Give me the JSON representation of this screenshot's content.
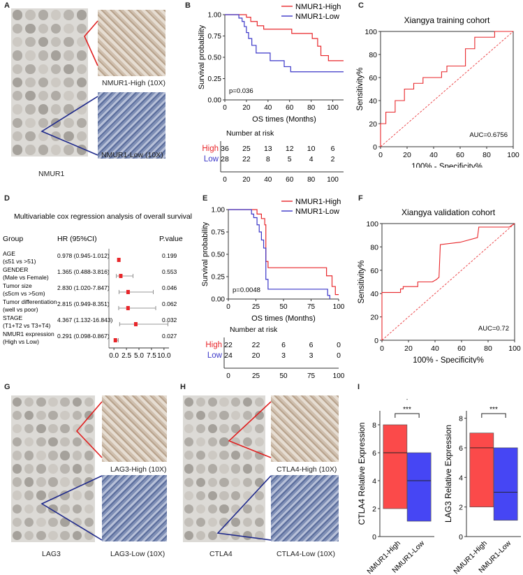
{
  "panels": {
    "A": {
      "letter": "A",
      "main_label": "NMUR1",
      "high_label": "NMUR1-High (10X)",
      "low_label": "NMUR1-Low (10X)"
    },
    "G": {
      "letter": "G",
      "main_label": "LAG3",
      "high_label": "LAG3-High (10X)",
      "low_label": "LAG3-Low (10X)"
    },
    "H": {
      "letter": "H",
      "main_label": "CTLA4",
      "high_label": "CTLA4-High (10X)",
      "low_label": "CTLA4-Low (10X)"
    }
  },
  "colors": {
    "high": "#e8262a",
    "low": "#3a36c8",
    "diag": "#e8262a",
    "high_fill": "#fb4a4a",
    "low_fill": "#4646f4",
    "tri_red": "#e02020",
    "tri_blue": "#1f2a8c"
  },
  "chart_data": [
    {
      "id": "B",
      "letter": "B",
      "type": "line",
      "ylabel": "Survival probability",
      "xlabel": "OS times (Months)",
      "xlim": [
        0,
        110
      ],
      "ylim": [
        0,
        1
      ],
      "xticks": [
        0,
        20,
        40,
        60,
        80,
        100
      ],
      "yticks": [
        0,
        0.25,
        0.5,
        0.75,
        1.0
      ],
      "ytick_labels": [
        "0.00",
        "0.25",
        "0.50",
        "0.75",
        "1.00"
      ],
      "pvalue": "p=0.036",
      "series": [
        {
          "name": "NMUR1-High",
          "steps": [
            [
              0,
              1
            ],
            [
              18,
              1
            ],
            [
              20,
              0.97
            ],
            [
              24,
              0.92
            ],
            [
              30,
              0.87
            ],
            [
              36,
              0.83
            ],
            [
              62,
              0.78
            ],
            [
              81,
              0.72
            ],
            [
              86,
              0.63
            ],
            [
              89,
              0.52
            ],
            [
              96,
              0.46
            ],
            [
              110,
              0.46
            ]
          ]
        },
        {
          "name": "NMUR1-Low",
          "steps": [
            [
              0,
              1
            ],
            [
              11,
              1
            ],
            [
              13,
              0.96
            ],
            [
              16,
              0.92
            ],
            [
              18,
              0.86
            ],
            [
              20,
              0.79
            ],
            [
              22,
              0.72
            ],
            [
              25,
              0.64
            ],
            [
              29,
              0.55
            ],
            [
              42,
              0.46
            ],
            [
              55,
              0.39
            ],
            [
              61,
              0.33
            ],
            [
              110,
              0.33
            ]
          ]
        }
      ],
      "risk": {
        "title": "Number at risk",
        "rows": [
          {
            "label": "High",
            "values": [
              "36",
              "25",
              "13",
              "12",
              "10",
              "6"
            ]
          },
          {
            "label": "Low",
            "values": [
              "28",
              "22",
              "8",
              "5",
              "4",
              "2"
            ]
          }
        ],
        "xticks": [
          "0",
          "20",
          "40",
          "60",
          "80",
          "100"
        ]
      }
    },
    {
      "id": "E",
      "letter": "E",
      "type": "line",
      "ylabel": "Survival probability",
      "xlabel": "OS times (Months)",
      "xlim": [
        0,
        100
      ],
      "ylim": [
        0,
        1
      ],
      "xticks": [
        0,
        25,
        50,
        75,
        100
      ],
      "yticks": [
        0,
        0.25,
        0.5,
        0.75,
        1.0
      ],
      "ytick_labels": [
        "0.00",
        "0.25",
        "0.50",
        "0.75",
        "1.00"
      ],
      "pvalue": "p=0.0048",
      "series": [
        {
          "name": "NMUR1-High",
          "steps": [
            [
              0,
              1
            ],
            [
              24,
              1
            ],
            [
              26,
              0.95
            ],
            [
              30,
              0.9
            ],
            [
              33,
              0.83
            ],
            [
              34,
              0.42
            ],
            [
              36,
              0.35
            ],
            [
              89,
              0.26
            ],
            [
              94,
              0.14
            ],
            [
              97,
              0.05
            ],
            [
              100,
              0.05
            ]
          ]
        },
        {
          "name": "NMUR1-Low",
          "steps": [
            [
              0,
              1
            ],
            [
              20,
              1
            ],
            [
              21,
              0.95
            ],
            [
              23,
              0.91
            ],
            [
              26,
              0.83
            ],
            [
              28,
              0.75
            ],
            [
              30,
              0.66
            ],
            [
              32,
              0.57
            ],
            [
              34,
              0.22
            ],
            [
              36,
              0.11
            ],
            [
              84,
              0.11
            ],
            [
              90,
              0.04
            ],
            [
              92,
              0
            ]
          ]
        }
      ],
      "risk": {
        "title": "Number at risk",
        "rows": [
          {
            "label": "High",
            "values": [
              "22",
              "22",
              "6",
              "6",
              "0"
            ]
          },
          {
            "label": "Low",
            "values": [
              "24",
              "20",
              "3",
              "3",
              "0"
            ]
          }
        ],
        "xticks": [
          "0",
          "25",
          "50",
          "75",
          "100"
        ]
      }
    },
    {
      "id": "C",
      "letter": "C",
      "type": "line",
      "title": "Xiangya training cohort",
      "xlabel": "100% - Specificity%",
      "ylabel": "Sensitivity%",
      "xlim": [
        0,
        100
      ],
      "ylim": [
        0,
        100
      ],
      "xticks": [
        0,
        20,
        40,
        60,
        80,
        100
      ],
      "yticks": [
        0,
        20,
        40,
        60,
        80,
        100
      ],
      "auc": "AUC=0.6756",
      "roc": [
        [
          0,
          0
        ],
        [
          0,
          20
        ],
        [
          4,
          20
        ],
        [
          4,
          30
        ],
        [
          11,
          30
        ],
        [
          11,
          40
        ],
        [
          18,
          40
        ],
        [
          18,
          50
        ],
        [
          25,
          50
        ],
        [
          25,
          55
        ],
        [
          32,
          55
        ],
        [
          32,
          60
        ],
        [
          46,
          60
        ],
        [
          46,
          65
        ],
        [
          50,
          65
        ],
        [
          50,
          70
        ],
        [
          64,
          70
        ],
        [
          64,
          85
        ],
        [
          71,
          85
        ],
        [
          71,
          95
        ],
        [
          86,
          95
        ],
        [
          86,
          100
        ],
        [
          100,
          100
        ]
      ]
    },
    {
      "id": "F",
      "letter": "F",
      "type": "line",
      "title": "Xiangya validation cohort",
      "xlabel": "100% - Specificity%",
      "ylabel": "Sensitivity%",
      "xlim": [
        0,
        100
      ],
      "ylim": [
        0,
        100
      ],
      "xticks": [
        0,
        20,
        40,
        60,
        80,
        100
      ],
      "yticks": [
        0,
        20,
        40,
        60,
        80,
        100
      ],
      "auc": "AUC=0.72",
      "roc": [
        [
          0,
          0
        ],
        [
          0,
          41
        ],
        [
          14,
          41
        ],
        [
          14,
          44
        ],
        [
          16,
          44
        ],
        [
          16,
          46
        ],
        [
          27,
          46
        ],
        [
          27,
          50
        ],
        [
          38,
          50
        ],
        [
          41,
          52
        ],
        [
          43,
          54
        ],
        [
          44,
          82
        ],
        [
          59,
          84
        ],
        [
          72,
          88
        ],
        [
          73,
          97
        ],
        [
          96,
          97
        ],
        [
          100,
          100
        ]
      ]
    },
    {
      "id": "D",
      "letter": "D",
      "type": "scatter",
      "title": "Multivariable cox regression analysis of overall survival",
      "headers": {
        "group": "Group",
        "hr": "HR (95%CI)",
        "p": "P.value"
      },
      "xlim": [
        -1,
        11
      ],
      "xticks": [
        0,
        2.5,
        5,
        7.5,
        10
      ],
      "xtick_labels": [
        "0.0",
        "2.5",
        "5.0",
        "7.5",
        "10.0"
      ],
      "rows": [
        {
          "g1": "AGE",
          "g2": "(≤51 vs >51)",
          "hr": "0.978 (0.945-1.012)",
          "p": "0.199",
          "est": 0.978,
          "lo": 0.945,
          "hi": 1.012
        },
        {
          "g1": "GENDER",
          "g2": "(Male vs Female)",
          "hr": "1.365 (0.488-3.816)",
          "p": "0.553",
          "est": 1.365,
          "lo": 0.488,
          "hi": 3.816
        },
        {
          "g1": "Tumor size",
          "g2": "(≤5cm vs >5cm)",
          "hr": "2.830 (1.020-7.847)",
          "p": "0.046",
          "est": 2.83,
          "lo": 1.02,
          "hi": 7.847
        },
        {
          "g1": "Tumor differentiation",
          "g2": "(well vs poor)",
          "hr": "2.815 (0.949-8.351)",
          "p": "0.062",
          "est": 2.815,
          "lo": 0.949,
          "hi": 8.351
        },
        {
          "g1": "STAGE",
          "g2": "(T1+T2 vs T3+T4)",
          "hr": "4.367 (1.132-16.843)",
          "p": "0.032",
          "est": 4.367,
          "lo": 1.132,
          "hi": 10.8
        },
        {
          "g1": "NMUR1 expression",
          "g2": "(High vs Low)",
          "hr": "0.291 (0.098-0.867)",
          "p": "0.027",
          "est": 0.291,
          "lo": 0.098,
          "hi": 0.867
        }
      ]
    },
    {
      "id": "I1",
      "letter": "I",
      "type": "bar",
      "ylabel": "CTLA4 Relative Expression",
      "categories": [
        "NMUR1-High",
        "NMUR1-Low"
      ],
      "ylim": [
        0,
        9
      ],
      "yticks": [
        0,
        2,
        4,
        6,
        8
      ],
      "boxes": [
        {
          "min": 2,
          "max": 8,
          "median": 6
        },
        {
          "min": 1.1,
          "max": 6,
          "median": 4
        }
      ],
      "sig": "***",
      "dot": "-"
    },
    {
      "id": "I2",
      "type": "bar",
      "ylabel": "LAG3 Relative Expression",
      "categories": [
        "NMUR1-High",
        "NMUR1-Low"
      ],
      "ylim": [
        0,
        8.5
      ],
      "yticks": [
        0,
        2,
        4,
        6,
        8
      ],
      "boxes": [
        {
          "min": 2,
          "max": 7,
          "median": 6
        },
        {
          "min": 1.1,
          "max": 6,
          "median": 3
        }
      ],
      "sig": "***"
    }
  ]
}
